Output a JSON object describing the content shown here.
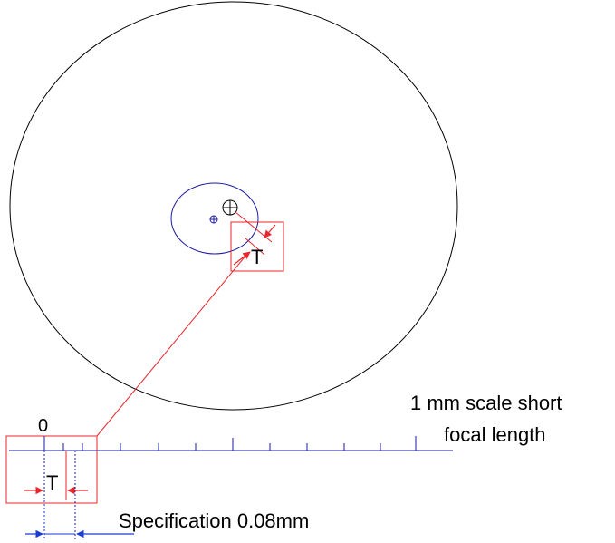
{
  "labels": {
    "zero": "0",
    "t_upper": "T",
    "t_lower": "T",
    "scale_line1": "1 mm scale short",
    "scale_line2": "focal length",
    "specification": "Specification 0.08mm"
  },
  "colors": {
    "outline": "#000000",
    "scale": "#1a1aa6",
    "highlight": "#e8262c",
    "dimension": "#1a3ad6"
  }
}
